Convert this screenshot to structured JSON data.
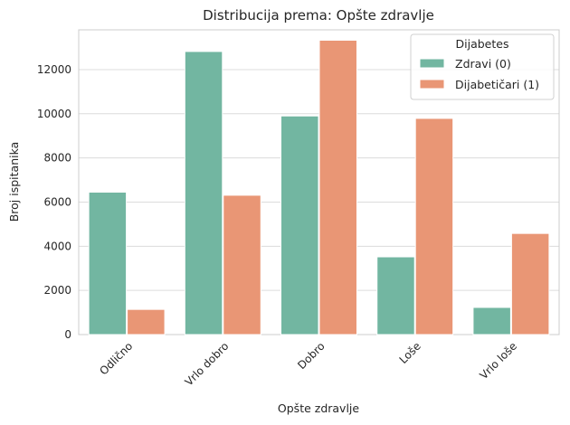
{
  "chart_data": {
    "type": "bar",
    "title": "Distribucija prema: Opšte zdravlje",
    "xlabel": "Opšte zdravlje",
    "ylabel": "Broj ispitanika",
    "categories": [
      "Odlično",
      "Vrlo dobro",
      "Dobro",
      "Loše",
      "Vrlo loše"
    ],
    "series": [
      {
        "name": "Zdravi (0)",
        "color": "#72b6a1",
        "values": [
          6450,
          12820,
          9900,
          3520,
          1230
        ]
      },
      {
        "name": "Dijabetičari (1)",
        "color": "#e99675",
        "values": [
          1140,
          6310,
          13330,
          9790,
          4580
        ]
      }
    ],
    "ylim": [
      0,
      13800
    ],
    "yticks": [
      0,
      2000,
      4000,
      6000,
      8000,
      10000,
      12000
    ],
    "grid": true,
    "legend": {
      "title": "Dijabetes",
      "placement": "top-right"
    }
  }
}
